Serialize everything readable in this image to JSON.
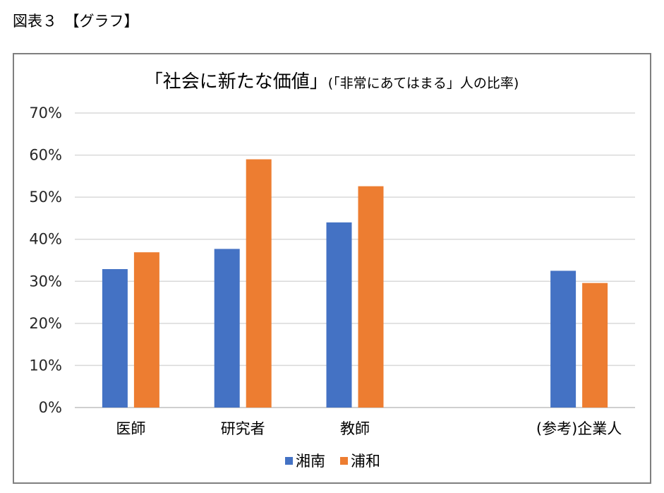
{
  "caption": "図表３　【グラフ】",
  "chart_data": {
    "type": "bar",
    "title": "「社会に新たな価値」",
    "subtitle": "(「非常にあてはまる」人の比率)",
    "categories": [
      "医師",
      "研究者",
      "教師",
      "",
      "(参考)企業人"
    ],
    "series": [
      {
        "name": "湘南",
        "color": "#4472c4",
        "values": [
          32.9,
          37.7,
          44.0,
          null,
          32.5
        ]
      },
      {
        "name": "浦和",
        "color": "#ed7d31",
        "values": [
          36.9,
          59.0,
          52.6,
          null,
          29.6
        ]
      }
    ],
    "yticks": [
      "0%",
      "10%",
      "20%",
      "30%",
      "40%",
      "50%",
      "60%",
      "70%"
    ],
    "ylim": [
      0,
      70
    ],
    "grid": true,
    "legend": "bottom"
  }
}
